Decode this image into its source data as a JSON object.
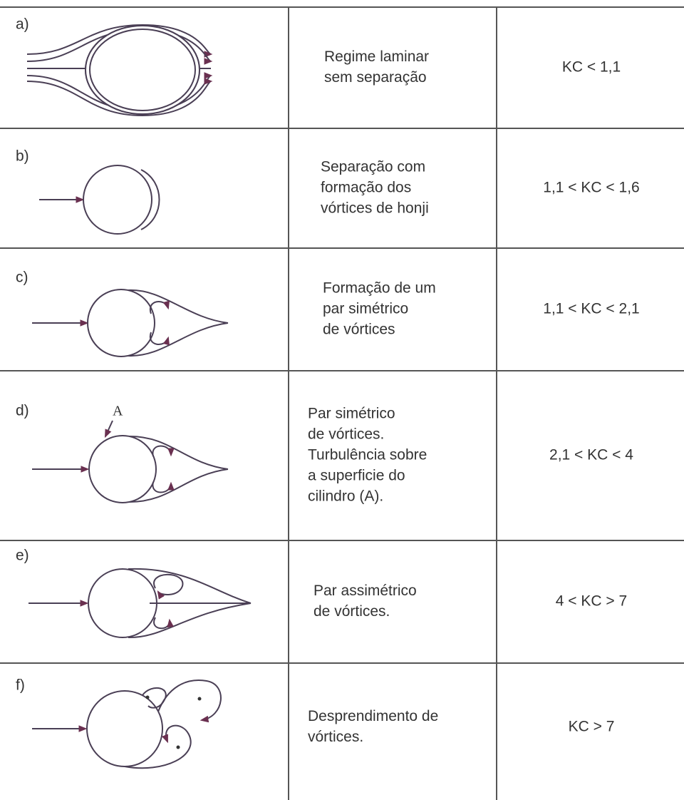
{
  "rows": [
    {
      "label": "a)",
      "description": [
        "Regime laminar",
        "sem separação"
      ],
      "regime": "KC < 1,1"
    },
    {
      "label": "b)",
      "description": [
        "Separação com",
        "formação dos",
        "vórtices de honji"
      ],
      "regime": "1,1 < KC < 1,6"
    },
    {
      "label": "c)",
      "description": [
        "Formação de um",
        "par simétrico",
        "de vórtices"
      ],
      "regime": "1,1 < KC < 2,1"
    },
    {
      "label": "d)",
      "diagram_label": "A",
      "description": [
        "Par simétrico",
        "de vórtices.",
        "Turbulência sobre",
        "a superficie do",
        "cilindro (A)."
      ],
      "regime": "2,1 < KC < 4"
    },
    {
      "label": "e)",
      "description": [
        "Par assimétrico",
        "de vórtices."
      ],
      "regime": "4 < KC > 7"
    },
    {
      "label": "f)",
      "description": [
        "Desprendimento de",
        "vórtices."
      ],
      "regime": "KC > 7"
    }
  ]
}
